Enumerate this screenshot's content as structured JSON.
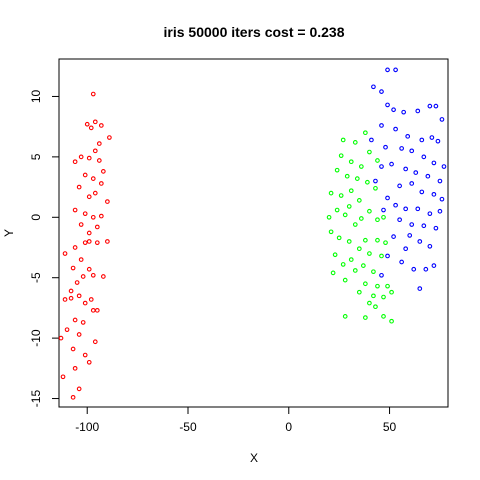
{
  "chart_data": {
    "type": "scatter",
    "title": "iris 50000 iters cost = 0.238",
    "xlabel": "X",
    "ylabel": "Y",
    "xlim": [
      -114,
      79
    ],
    "ylim": [
      -15.7,
      13.1
    ],
    "x_ticks": [
      -100,
      -50,
      0,
      50
    ],
    "y_ticks": [
      -15,
      -10,
      -5,
      0,
      5,
      10
    ],
    "colors": [
      "#ff0000",
      "#00ff00",
      "#0000ff"
    ],
    "series": [
      {
        "color": "#ff0000",
        "points": [
          [
            -97,
            10.2
          ],
          [
            -100,
            7.7
          ],
          [
            -96,
            7.9
          ],
          [
            -93,
            7.6
          ],
          [
            -98,
            7.4
          ],
          [
            -89,
            6.6
          ],
          [
            -94,
            6.1
          ],
          [
            -103,
            5.0
          ],
          [
            -96,
            5.5
          ],
          [
            -106,
            4.6
          ],
          [
            -99,
            4.9
          ],
          [
            -94,
            4.7
          ],
          [
            -92,
            3.8
          ],
          [
            -101,
            3.5
          ],
          [
            -97,
            3.2
          ],
          [
            -93,
            2.8
          ],
          [
            -104,
            2.5
          ],
          [
            -96,
            2.0
          ],
          [
            -90,
            1.3
          ],
          [
            -99,
            1.7
          ],
          [
            -106,
            0.6
          ],
          [
            -101,
            0.3
          ],
          [
            -97,
            0.0
          ],
          [
            -93,
            0.1
          ],
          [
            -103,
            -0.6
          ],
          [
            -99,
            -1.3
          ],
          [
            -95,
            -0.8
          ],
          [
            -101,
            -2.1
          ],
          [
            -99,
            -2.0
          ],
          [
            -95,
            -2.1
          ],
          [
            -90,
            -2.0
          ],
          [
            -106,
            -2.5
          ],
          [
            -111,
            -3.0
          ],
          [
            -103,
            -3.5
          ],
          [
            -107,
            -4.2
          ],
          [
            -99,
            -4.3
          ],
          [
            -97,
            -4.8
          ],
          [
            -102,
            -4.9
          ],
          [
            -92,
            -4.9
          ],
          [
            -105,
            -5.4
          ],
          [
            -108,
            -6.1
          ],
          [
            -104,
            -6.5
          ],
          [
            -98,
            -6.8
          ],
          [
            -111,
            -6.8
          ],
          [
            -108,
            -6.7
          ],
          [
            -101,
            -7.1
          ],
          [
            -95,
            -7.7
          ],
          [
            -97,
            -7.7
          ],
          [
            -106,
            -8.5
          ],
          [
            -102,
            -8.7
          ],
          [
            -110,
            -9.3
          ],
          [
            -104,
            -9.7
          ],
          [
            -113,
            -10.0
          ],
          [
            -96,
            -10.3
          ],
          [
            -107,
            -10.9
          ],
          [
            -101,
            -11.4
          ],
          [
            -99,
            -12.0
          ],
          [
            -106,
            -12.5
          ],
          [
            -112,
            -13.2
          ],
          [
            -104,
            -14.2
          ],
          [
            -107,
            -14.9
          ]
        ]
      },
      {
        "color": "#00ff00",
        "points": [
          [
            38,
            7.0
          ],
          [
            27,
            6.4
          ],
          [
            33,
            6.2
          ],
          [
            40,
            5.4
          ],
          [
            26,
            5.1
          ],
          [
            31,
            4.6
          ],
          [
            36,
            4.2
          ],
          [
            44,
            4.7
          ],
          [
            24,
            3.9
          ],
          [
            29,
            3.4
          ],
          [
            34,
            3.2
          ],
          [
            39,
            2.9
          ],
          [
            43,
            2.4
          ],
          [
            31,
            2.2
          ],
          [
            26,
            1.8
          ],
          [
            21,
            2.0
          ],
          [
            35,
            1.4
          ],
          [
            30,
            0.9
          ],
          [
            40,
            0.5
          ],
          [
            24,
            0.6
          ],
          [
            20,
            0.0
          ],
          [
            28,
            0.2
          ],
          [
            36,
            -0.1
          ],
          [
            44,
            -0.2
          ],
          [
            47,
            0.0
          ],
          [
            33,
            -0.6
          ],
          [
            21,
            -1.2
          ],
          [
            25,
            -1.7
          ],
          [
            30,
            -2.0
          ],
          [
            38,
            -1.9
          ],
          [
            44,
            -1.9
          ],
          [
            48,
            -2.1
          ],
          [
            35,
            -2.6
          ],
          [
            40,
            -3.0
          ],
          [
            23,
            -3.1
          ],
          [
            31,
            -3.5
          ],
          [
            46,
            -3.2
          ],
          [
            27,
            -3.9
          ],
          [
            37,
            -4.0
          ],
          [
            42,
            -4.5
          ],
          [
            33,
            -4.4
          ],
          [
            22,
            -4.6
          ],
          [
            28,
            -5.2
          ],
          [
            38,
            -5.5
          ],
          [
            44,
            -5.7
          ],
          [
            49,
            -5.7
          ],
          [
            35,
            -6.2
          ],
          [
            42,
            -6.5
          ],
          [
            47,
            -6.6
          ],
          [
            51,
            -6.2
          ],
          [
            40,
            -7.1
          ],
          [
            43,
            -7.4
          ],
          [
            28,
            -8.2
          ],
          [
            38,
            -8.3
          ],
          [
            47,
            -8.2
          ],
          [
            51,
            -8.6
          ]
        ]
      },
      {
        "color": "#0000ff",
        "points": [
          [
            49,
            12.2
          ],
          [
            53,
            12.2
          ],
          [
            42,
            10.8
          ],
          [
            46,
            10.4
          ],
          [
            49,
            9.3
          ],
          [
            52,
            8.9
          ],
          [
            57,
            8.7
          ],
          [
            64,
            8.8
          ],
          [
            70,
            9.2
          ],
          [
            73,
            9.2
          ],
          [
            76,
            8.1
          ],
          [
            46,
            7.6
          ],
          [
            53,
            7.3
          ],
          [
            59,
            6.7
          ],
          [
            66,
            6.4
          ],
          [
            71,
            6.6
          ],
          [
            74,
            6.3
          ],
          [
            41,
            6.4
          ],
          [
            48,
            5.8
          ],
          [
            56,
            5.7
          ],
          [
            61,
            5.5
          ],
          [
            67,
            5.0
          ],
          [
            72,
            4.5
          ],
          [
            77,
            4.2
          ],
          [
            46,
            4.2
          ],
          [
            51,
            4.4
          ],
          [
            58,
            4.0
          ],
          [
            63,
            3.7
          ],
          [
            69,
            3.4
          ],
          [
            75,
            3.0
          ],
          [
            43,
            3.0
          ],
          [
            55,
            2.6
          ],
          [
            61,
            2.8
          ],
          [
            66,
            2.1
          ],
          [
            72,
            1.9
          ],
          [
            76,
            1.5
          ],
          [
            49,
            1.6
          ],
          [
            53,
            1.0
          ],
          [
            58,
            0.7
          ],
          [
            64,
            0.7
          ],
          [
            70,
            0.3
          ],
          [
            75,
            0.5
          ],
          [
            47,
            0.6
          ],
          [
            55,
            -0.2
          ],
          [
            61,
            -0.6
          ],
          [
            67,
            -0.7
          ],
          [
            73,
            -0.9
          ],
          [
            52,
            -1.6
          ],
          [
            60,
            -1.5
          ],
          [
            65,
            -2.0
          ],
          [
            58,
            -2.6
          ],
          [
            70,
            -2.4
          ],
          [
            49,
            -3.2
          ],
          [
            56,
            -3.7
          ],
          [
            62,
            -4.3
          ],
          [
            68,
            -4.3
          ],
          [
            72,
            -4.0
          ],
          [
            46,
            -4.8
          ],
          [
            65,
            -5.9
          ]
        ]
      }
    ]
  }
}
